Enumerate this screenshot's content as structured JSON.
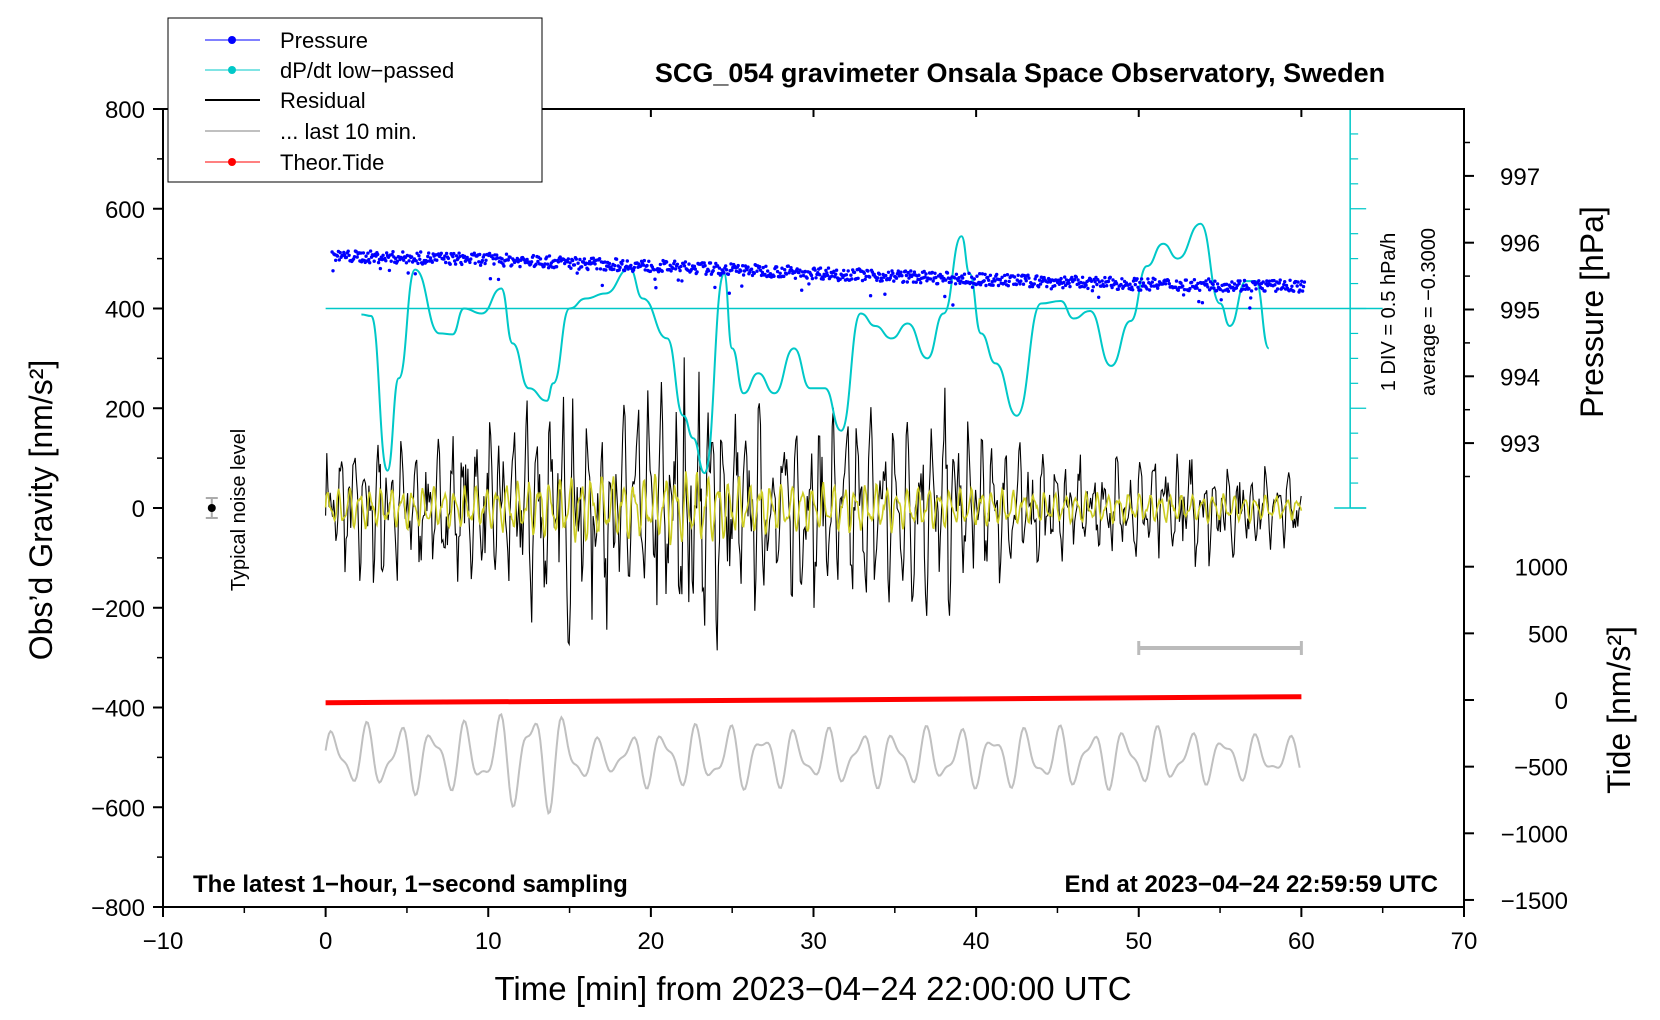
{
  "chart_data": {
    "type": "line",
    "title": "SCG_054 gravimeter Onsala Space Observatory, Sweden",
    "xlabel": "Time [min] from 2023−04−24 22:00:00 UTC",
    "ylabel_main": "Obs’d Gravity [nm/s²]",
    "ylabel_pressure": "Pressure [hPa]",
    "ylabel_tide": "Tide [nm/s²]",
    "xlim": [
      -10,
      70
    ],
    "ylim": [
      -800,
      800
    ],
    "x_ticks": [
      "−10",
      "0",
      "10",
      "20",
      "30",
      "40",
      "50",
      "60",
      "70"
    ],
    "y_ticks": [
      "800",
      "600",
      "400",
      "200",
      "0",
      "−200",
      "−400",
      "−600",
      "−800"
    ],
    "pressure_ticks": [
      "997",
      "996",
      "995",
      "994",
      "993"
    ],
    "pressure_tick_values": [
      997,
      996,
      995,
      994,
      993
    ],
    "tide_ticks": [
      "1000",
      "500",
      "0",
      "−500",
      "−1000",
      "−1500"
    ],
    "tide_tick_values": [
      1000,
      500,
      0,
      -500,
      -1000,
      -1500
    ],
    "legend": [
      {
        "label": "Pressure",
        "color": "#0000ff",
        "marker": "dot"
      },
      {
        "label": "dP/dt low−passed",
        "color": "#00c8c8",
        "marker": "dot"
      },
      {
        "label": "Residual",
        "color": "#000000",
        "marker": "line"
      },
      {
        "label": "... last 10 min.",
        "color": "#c0c0c0",
        "marker": "line"
      },
      {
        "label": "Theor.Tide",
        "color": "#ff0000",
        "marker": "dot"
      }
    ],
    "annotations": {
      "noise_label": "Typical noise level",
      "div_label": "1 DIV = 0.5 hPa/h",
      "average_label": "average = −0.3000",
      "bottom_left": "The latest 1−hour, 1−second sampling",
      "bottom_right": "End at 2023−04−24 22:59:59 UTC"
    },
    "series": [
      {
        "name": "Pressure",
        "unit": "hPa",
        "points": [
          [
            0,
            995.8
          ],
          [
            10,
            995.75
          ],
          [
            20,
            995.65
          ],
          [
            30,
            995.55
          ],
          [
            40,
            995.45
          ],
          [
            50,
            995.38
          ],
          [
            60,
            995.35
          ]
        ]
      },
      {
        "name": "dP/dt low-passed",
        "unit": "nm/s2 display",
        "points": [
          [
            2.2,
            388
          ],
          [
            2.8,
            385
          ],
          [
            3.8,
            75
          ],
          [
            4.5,
            260
          ],
          [
            5.5,
            478
          ],
          [
            7,
            350
          ],
          [
            7.8,
            348
          ],
          [
            8.5,
            400
          ],
          [
            9.6,
            390
          ],
          [
            10.8,
            440
          ],
          [
            11.5,
            330
          ],
          [
            12.5,
            240
          ],
          [
            13.6,
            215
          ],
          [
            14,
            250
          ],
          [
            15,
            400
          ],
          [
            16,
            420
          ],
          [
            17.2,
            430
          ],
          [
            18.7,
            480
          ],
          [
            19.5,
            420
          ],
          [
            21,
            340
          ],
          [
            22,
            185
          ],
          [
            22.6,
            140
          ],
          [
            23.3,
            70
          ],
          [
            24.5,
            470
          ],
          [
            25,
            320
          ],
          [
            25.7,
            230
          ],
          [
            26.6,
            270
          ],
          [
            27.6,
            230
          ],
          [
            28.8,
            320
          ],
          [
            29.8,
            240
          ],
          [
            30.7,
            240
          ],
          [
            31.7,
            155
          ],
          [
            32.9,
            390
          ],
          [
            33.8,
            365
          ],
          [
            34.8,
            340
          ],
          [
            35.8,
            370
          ],
          [
            37,
            300
          ],
          [
            38,
            390
          ],
          [
            39.1,
            545
          ],
          [
            39.6,
            470
          ],
          [
            40.3,
            350
          ],
          [
            41.2,
            290
          ],
          [
            42.5,
            185
          ],
          [
            44,
            410
          ],
          [
            45.2,
            415
          ],
          [
            46,
            380
          ],
          [
            47,
            395
          ],
          [
            48.3,
            285
          ],
          [
            49.5,
            375
          ],
          [
            50.5,
            485
          ],
          [
            51.5,
            530
          ],
          [
            52.4,
            500
          ],
          [
            53.8,
            570
          ],
          [
            55,
            410
          ],
          [
            55.6,
            365
          ],
          [
            56.6,
            455
          ],
          [
            57.2,
            455
          ],
          [
            58,
            320
          ]
        ]
      },
      {
        "name": "Theor.Tide",
        "unit": "nm/s2",
        "points": [
          [
            0,
            -20
          ],
          [
            30,
            0
          ],
          [
            60,
            25
          ]
        ]
      },
      {
        "name": "Residual",
        "unit": "nm/s2",
        "envelope": [
          [
            0,
            110
          ],
          [
            3,
            160
          ],
          [
            6,
            110
          ],
          [
            10,
            150
          ],
          [
            13,
            200
          ],
          [
            16,
            240
          ],
          [
            19,
            200
          ],
          [
            23,
            290
          ],
          [
            25,
            180
          ],
          [
            30,
            170
          ],
          [
            35,
            170
          ],
          [
            38,
            190
          ],
          [
            42,
            140
          ],
          [
            45,
            100
          ],
          [
            48,
            90
          ],
          [
            52,
            110
          ],
          [
            55,
            95
          ],
          [
            60,
            60
          ]
        ]
      },
      {
        "name": "Residual low-passed",
        "unit": "nm/s2",
        "envelope": [
          [
            0,
            40
          ],
          [
            5,
            40
          ],
          [
            10,
            45
          ],
          [
            16,
            70
          ],
          [
            19,
            60
          ],
          [
            23,
            75
          ],
          [
            26,
            55
          ],
          [
            30,
            50
          ],
          [
            35,
            45
          ],
          [
            40,
            40
          ],
          [
            45,
            30
          ],
          [
            50,
            30
          ],
          [
            55,
            28
          ],
          [
            60,
            22
          ]
        ]
      },
      {
        "name": "... last 10 min.",
        "unit": "nm/s2",
        "baseline": -500,
        "envelope": [
          [
            0,
            60
          ],
          [
            5,
            70
          ],
          [
            10,
            70
          ],
          [
            12.8,
            125
          ],
          [
            14,
            100
          ],
          [
            17,
            30
          ],
          [
            20,
            60
          ],
          [
            25,
            65
          ],
          [
            30,
            55
          ],
          [
            40,
            60
          ],
          [
            50,
            60
          ],
          [
            60,
            40
          ]
        ]
      }
    ],
    "noise_bar": {
      "x": -7,
      "y": 0,
      "err": 20
    },
    "scale_bar": {
      "x_start": 50,
      "x_end": 60
    }
  }
}
